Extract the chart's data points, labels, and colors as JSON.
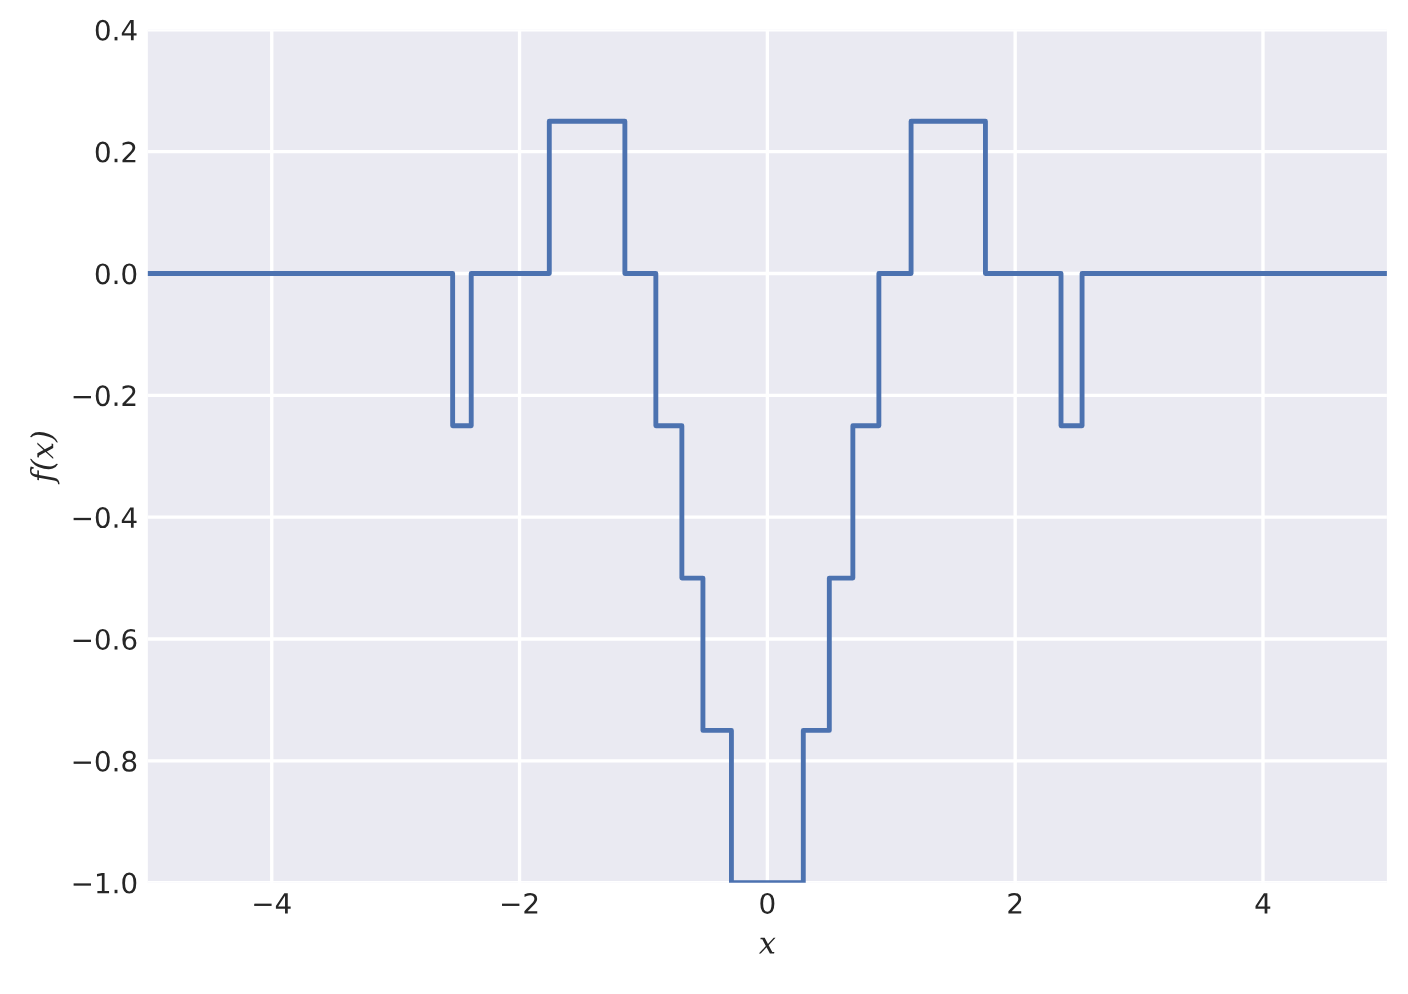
{
  "chart_data": {
    "type": "step",
    "xlabel": "x",
    "ylabel": "f(x)",
    "series": [
      {
        "color": "#4c72b0",
        "x": [
          -5,
          -2.54,
          -2.39,
          -1.76,
          -1.15,
          -0.9,
          -0.69,
          -0.52,
          -0.29,
          0.29,
          0.5,
          0.69,
          0.9,
          1.16,
          1.76,
          2.37,
          2.54,
          5
        ],
        "values": [
          0,
          -0.25,
          0,
          0.25,
          0,
          -0.25,
          -0.5,
          -0.75,
          -1.0,
          -0.75,
          -0.5,
          -0.25,
          0,
          0.25,
          0,
          -0.25,
          0,
          0
        ]
      }
    ],
    "xlim": [
      -5,
      5
    ],
    "ylim": [
      -1.0,
      0.4
    ],
    "xticks": [
      {
        "value": -4,
        "label": "−4"
      },
      {
        "value": -2,
        "label": "−2"
      },
      0,
      2,
      4
    ],
    "yticks": [
      {
        "value": -1.0,
        "label": "−1.0"
      },
      {
        "value": -0.8,
        "label": "−0.8"
      },
      {
        "value": -0.6,
        "label": "−0.6"
      },
      {
        "value": -0.4,
        "label": "−0.4"
      },
      {
        "value": -0.2,
        "label": "−0.2"
      },
      {
        "value": 0.0,
        "label": "0.0"
      },
      {
        "value": 0.2,
        "label": "0.2"
      },
      {
        "value": 0.4,
        "label": "0.4"
      }
    ],
    "grid": true,
    "line_style": "solid"
  }
}
